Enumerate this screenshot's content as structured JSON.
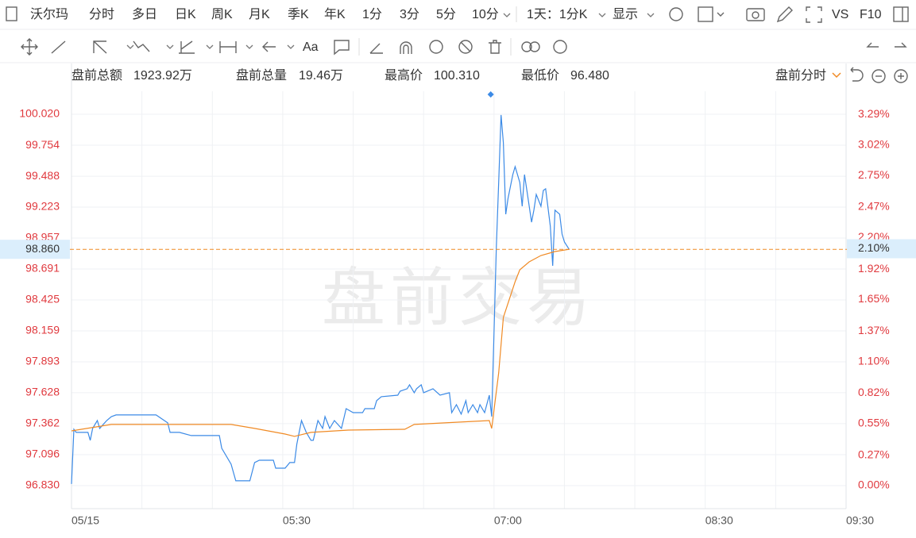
{
  "toolbar": {
    "symbol": "沃尔玛",
    "tabs": [
      "分时",
      "多日",
      "日K",
      "周K",
      "月K",
      "季K",
      "年K",
      "1分",
      "3分",
      "5分",
      "10分"
    ],
    "active_tab": 0,
    "range": "1天：1分K",
    "display": "显示",
    "vs": "VS",
    "f10": "F10"
  },
  "stats": [
    {
      "label": "盘前总额",
      "value": "1923.92万"
    },
    {
      "label": "盘前总量",
      "value": "19.46万"
    },
    {
      "label": "最高价",
      "value": "100.310"
    },
    {
      "label": "最低价",
      "value": "96.480"
    }
  ],
  "view": "盘前分时",
  "chart_data": {
    "type": "line",
    "watermark": "盘前交易",
    "xlim": [
      "04:00",
      "09:30"
    ],
    "xticks": [
      {
        "value": "04:00",
        "label": "05/15"
      },
      {
        "value": "04:30",
        "label": null
      },
      {
        "value": "05:00",
        "label": null
      },
      "05:30",
      {
        "value": "06:00",
        "label": null
      },
      {
        "value": "06:30",
        "label": null
      },
      "07:00",
      {
        "value": "07:30",
        "label": null
      },
      {
        "value": "08:00",
        "label": null
      },
      "08:30",
      {
        "value": "09:00",
        "label": null
      },
      "09:30"
    ],
    "ylim": [
      96.632,
      100.218
    ],
    "yticks": [
      {
        "value": 100.02,
        "label": "100.020"
      },
      99.754,
      99.488,
      99.223,
      98.957,
      98.691,
      98.425,
      98.159,
      97.893,
      97.628,
      97.362,
      97.096,
      {
        "value": 96.83,
        "label": "96.830"
      }
    ],
    "y2lim": [
      -0.204,
      3.496
    ],
    "y2ticks": [
      {
        "value": 3.29,
        "label": "3.29%"
      },
      {
        "value": 3.02,
        "label": "3.02%"
      },
      {
        "value": 2.75,
        "label": "2.75%"
      },
      {
        "value": 2.47,
        "label": "2.47%"
      },
      {
        "value": 2.2,
        "label": "2.20%"
      },
      {
        "value": 1.92,
        "label": "1.92%"
      },
      {
        "value": 1.65,
        "label": "1.65%"
      },
      {
        "value": 1.37,
        "label": "1.37%"
      },
      {
        "value": 1.1,
        "label": "1.10%"
      },
      {
        "value": 0.82,
        "label": "0.82%"
      },
      {
        "value": 0.55,
        "label": "0.55%"
      },
      {
        "value": 0.27,
        "label": "0.27%"
      },
      {
        "value": 0,
        "label": "0.00%"
      }
    ],
    "grid": true,
    "last": {
      "value": 98.86,
      "label": "98.860",
      "pct": 2.1,
      "pct_label": "2.10%",
      "color": "#f08a24"
    },
    "series": [
      {
        "color": "#3b8ae6",
        "x": [
          "04:00",
          "04:01",
          "04:02",
          "04:07",
          "04:08",
          "04:09",
          "04:11",
          "04:12",
          "04:15",
          "04:17",
          "04:19",
          "04:36",
          "04:41",
          "04:42",
          "04:46",
          "04:51",
          "05:03",
          "05:04",
          "05:08",
          "05:10",
          "05:16",
          "05:18",
          "05:20",
          "05:26",
          "05:27",
          "05:31",
          "05:33",
          "05:35",
          "05:36",
          "05:38",
          "05:40",
          "05:42",
          "05:43",
          "05:45",
          "05:47",
          "05:48",
          "05:50",
          "05:52",
          "05:55",
          "05:57",
          "06:00",
          "06:04",
          "06:05",
          "06:09",
          "06:10",
          "06:12",
          "06:19",
          "06:20",
          "06:23",
          "06:24",
          "06:26",
          "06:27",
          "06:29",
          "06:30",
          "06:34",
          "06:37",
          "06:41",
          "06:42",
          "06:44",
          "06:46",
          "06:48",
          "06:49",
          "06:51",
          "06:53",
          "06:54",
          "06:56",
          "06:58",
          "06:59",
          "07:00",
          "07:01",
          "07:02",
          "07:03",
          "07:04",
          "07:05",
          "07:06",
          "07:08",
          "07:09",
          "07:11",
          "07:12",
          "07:13",
          "07:14",
          "07:16",
          "07:17",
          "07:18",
          "07:20",
          "07:21",
          "07:22",
          "07:24",
          "07:25",
          "07:26",
          "07:28",
          "07:29",
          "07:30",
          "07:32"
        ],
        "values": [
          96.844,
          97.314,
          97.287,
          97.287,
          97.219,
          97.321,
          97.389,
          97.321,
          97.389,
          97.423,
          97.437,
          97.437,
          97.369,
          97.287,
          97.287,
          97.26,
          97.26,
          97.151,
          97.014,
          96.871,
          96.871,
          97.028,
          97.048,
          97.048,
          96.98,
          96.98,
          97.028,
          97.028,
          97.185,
          97.389,
          97.287,
          97.219,
          97.219,
          97.389,
          97.321,
          97.423,
          97.321,
          97.389,
          97.321,
          97.491,
          97.457,
          97.457,
          97.491,
          97.491,
          97.56,
          97.594,
          97.607,
          97.641,
          97.662,
          97.696,
          97.628,
          97.662,
          97.696,
          97.628,
          97.662,
          97.607,
          97.628,
          97.457,
          97.525,
          97.444,
          97.56,
          97.457,
          97.525,
          97.457,
          97.525,
          97.457,
          97.607,
          97.423,
          98.139,
          98.889,
          99.434,
          100.014,
          99.775,
          99.161,
          99.298,
          99.502,
          99.57,
          99.434,
          99.23,
          99.502,
          99.366,
          99.093,
          99.196,
          99.332,
          99.23,
          99.366,
          99.38,
          99.059,
          98.718,
          99.196,
          99.161,
          98.991,
          98.923,
          98.86
        ]
      },
      {
        "color": "#f08a24",
        "x": [
          "04:00",
          "04:17",
          "05:08",
          "05:18",
          "05:31",
          "05:35",
          "05:42",
          "05:58",
          "06:22",
          "06:26",
          "06:39",
          "06:58",
          "06:59",
          "07:02",
          "07:04",
          "07:09",
          "07:11",
          "07:15",
          "07:20",
          "07:26",
          "07:32"
        ],
        "values": [
          97.3,
          97.355,
          97.355,
          97.321,
          97.273,
          97.253,
          97.287,
          97.307,
          97.314,
          97.355,
          97.369,
          97.389,
          97.321,
          97.798,
          98.275,
          98.582,
          98.684,
          98.752,
          98.807,
          98.841,
          98.86
        ]
      }
    ]
  }
}
